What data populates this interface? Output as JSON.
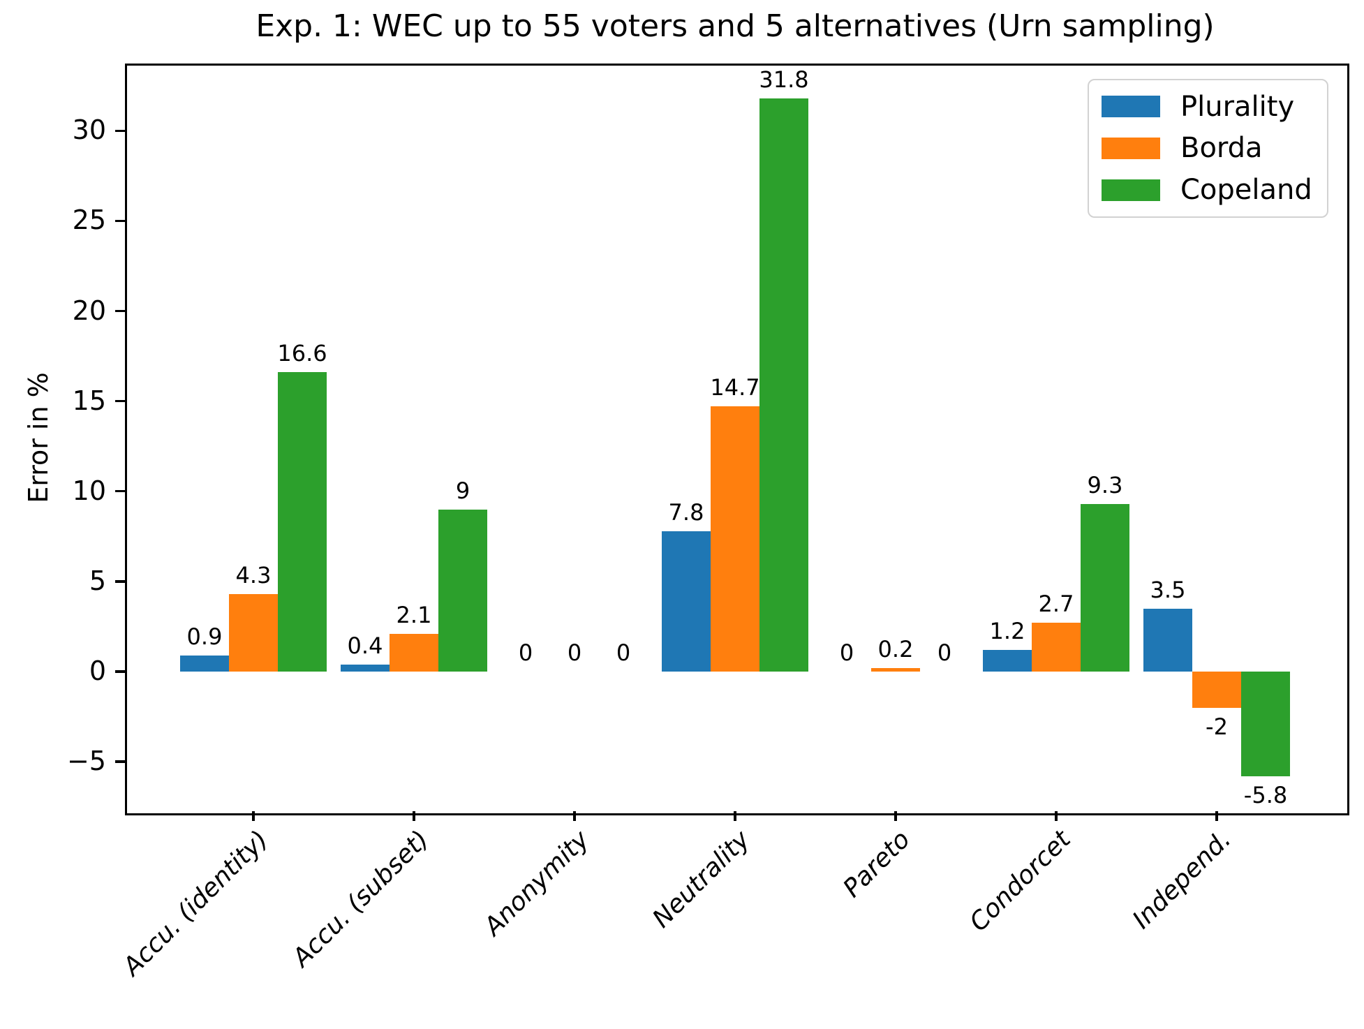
{
  "figure": {
    "background_color": "#ffffff",
    "axis_color": "#000000",
    "text_color": "#000000",
    "legend_frame_color": "#d2d2d2"
  },
  "chart_data": {
    "type": "bar",
    "title": "Exp. 1: WEC up to 55 voters and 5 alternatives (Urn sampling)",
    "ylabel": "Error in %",
    "xlabel": "",
    "categories": [
      "Accu. (identity)",
      "Accu. (subset)",
      "Anonymity",
      "Neutrality",
      "Pareto",
      "Condorcet",
      "Independ."
    ],
    "series": [
      {
        "name": "Plurality",
        "color": "#1f77b4",
        "values": [
          0.9,
          0.4,
          0,
          7.8,
          0,
          1.2,
          3.5
        ],
        "labels": [
          "0.9",
          "0.4",
          "0",
          "7.8",
          "0",
          "1.2",
          "3.5"
        ]
      },
      {
        "name": "Borda",
        "color": "#ff7f0e",
        "values": [
          4.3,
          2.1,
          0,
          14.7,
          0.2,
          2.7,
          -2
        ],
        "labels": [
          "4.3",
          "2.1",
          "0",
          "14.7",
          "0.2",
          "2.7",
          "-2"
        ]
      },
      {
        "name": "Copeland",
        "color": "#2ca02c",
        "values": [
          16.6,
          9,
          0,
          31.8,
          0,
          9.3,
          -5.8
        ],
        "labels": [
          "16.6",
          "9",
          "0",
          "31.8",
          "0",
          "9.3",
          "-5.8"
        ]
      }
    ],
    "y_ticks": {
      "values": [
        -5,
        0,
        5,
        10,
        15,
        20,
        25,
        30
      ],
      "labels": [
        "−5",
        "0",
        "5",
        "10",
        "15",
        "20",
        "25",
        "30"
      ]
    },
    "ylim": [
      -7.75,
      33.73
    ],
    "x_margin": 0.8,
    "bar_width_ratio": 0.304,
    "grid": false,
    "legend_position": "upper right",
    "x_tick_label_style": "italic rotated 45deg",
    "bar_value_labels_shown": true
  }
}
